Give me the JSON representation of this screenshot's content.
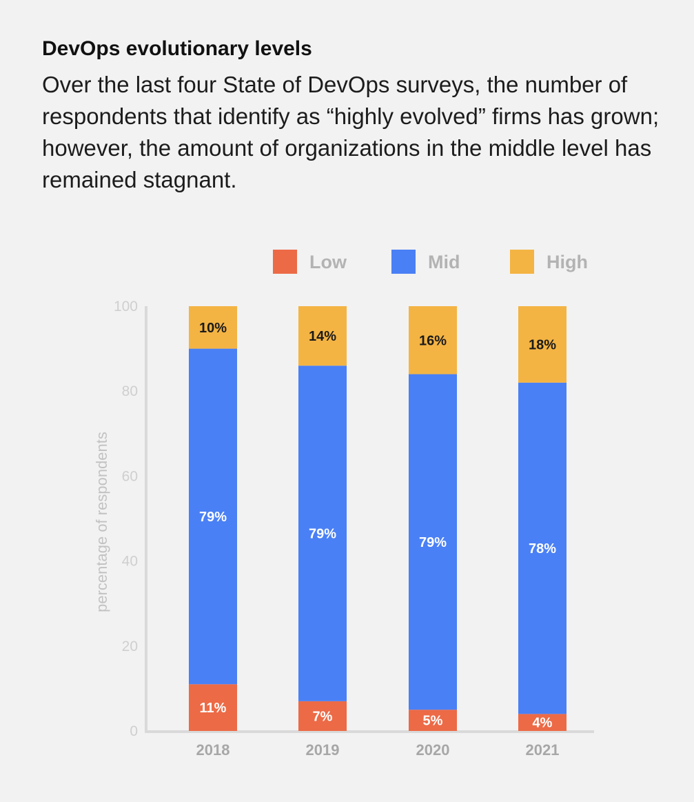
{
  "chart_data": {
    "type": "bar",
    "stacked": true,
    "title": "DevOps evolutionary levels",
    "subtitle": "Over the last four State of DevOps surveys, the number of respondents that identify as “highly evolved” firms has grown; however, the amount of organizations in the middle level has remained stagnant.",
    "categories": [
      "2018",
      "2019",
      "2020",
      "2021"
    ],
    "series": [
      {
        "name": "Low",
        "values": [
          11,
          7,
          5,
          4
        ],
        "labels": [
          "11%",
          "7%",
          "5%",
          "4%"
        ],
        "color": "#ec6a46",
        "label_color": "#ffffff"
      },
      {
        "name": "Mid",
        "values": [
          79,
          79,
          79,
          78
        ],
        "labels": [
          "79%",
          "79%",
          "79%",
          "78%"
        ],
        "color": "#4a80f5",
        "label_color": "#ffffff"
      },
      {
        "name": "High",
        "values": [
          10,
          14,
          16,
          18
        ],
        "labels": [
          "10%",
          "14%",
          "16%",
          "18%"
        ],
        "color": "#f4b443",
        "label_color": "#1a1a1a"
      }
    ],
    "xlabel": "",
    "ylabel": "percentage of respondents",
    "ylim": [
      0,
      100
    ],
    "yticks": [
      "0",
      "20",
      "40",
      "60",
      "80",
      "100"
    ],
    "legend_position": "top",
    "grid": false
  }
}
